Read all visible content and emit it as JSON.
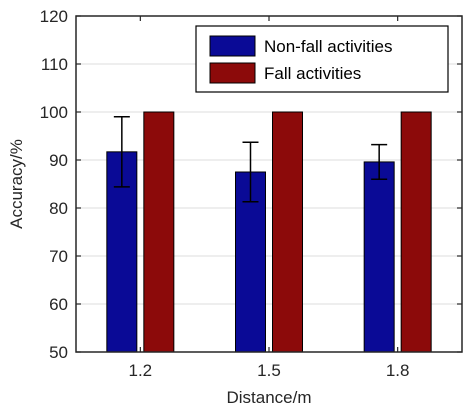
{
  "chart_data": {
    "type": "bar",
    "title": "",
    "xlabel": "Distance/m",
    "ylabel": "Accuracy/%",
    "categories": [
      "1.2",
      "1.5",
      "1.8"
    ],
    "ylim": [
      50,
      120
    ],
    "yticks": [
      50,
      60,
      70,
      80,
      90,
      100,
      110,
      120
    ],
    "grid": true,
    "legend_position": "top-right",
    "series": [
      {
        "name": "Non-fall activities",
        "color": "#0a0a96",
        "values": [
          91.7,
          87.5,
          89.6
        ],
        "error": [
          7.3,
          6.2,
          3.6
        ]
      },
      {
        "name": "Fall activities",
        "color": "#8c0a0a",
        "values": [
          100,
          100,
          100
        ]
      }
    ]
  }
}
